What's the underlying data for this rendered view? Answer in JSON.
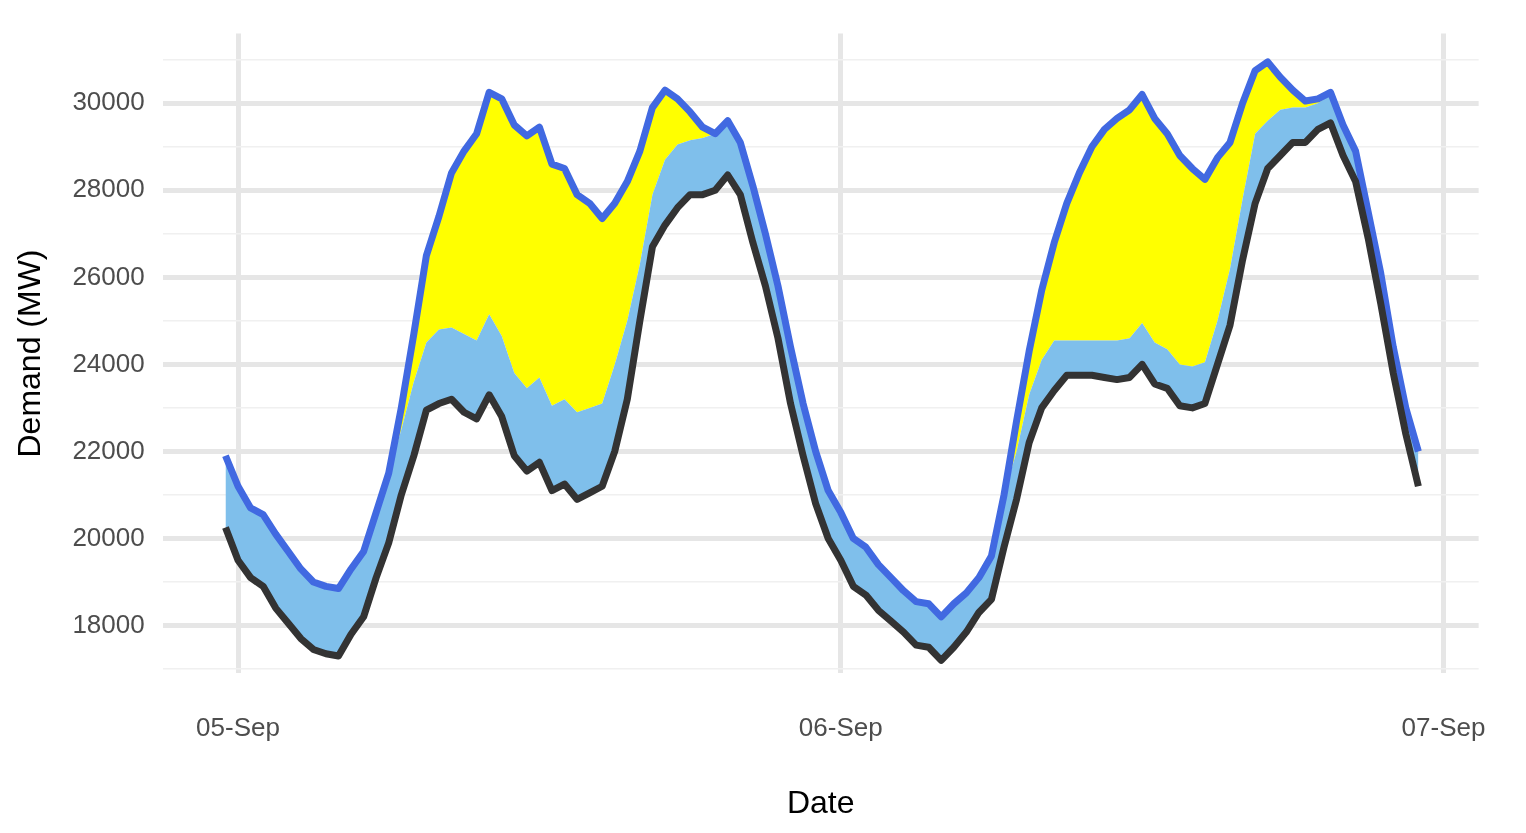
{
  "chart_data": {
    "type": "area",
    "xlabel": "Date",
    "ylabel": "Demand (MW)",
    "grid": true,
    "legend": false,
    "marker": "none",
    "categories": [
      null,
      "05-Sep",
      null,
      null,
      null,
      null,
      null,
      null,
      null,
      null,
      null,
      null,
      null,
      null,
      null,
      null,
      null,
      null,
      null,
      null,
      null,
      null,
      null,
      null,
      null,
      null,
      null,
      null,
      null,
      null,
      null,
      null,
      null,
      null,
      null,
      null,
      null,
      null,
      null,
      null,
      null,
      null,
      null,
      null,
      null,
      null,
      null,
      null,
      null,
      "06-Sep",
      null,
      null,
      null,
      null,
      null,
      null,
      null,
      null,
      null,
      null,
      null,
      null,
      null,
      null,
      null,
      null,
      null,
      null,
      null,
      null,
      null,
      null,
      null,
      null,
      null,
      null,
      null,
      null,
      null,
      null,
      null,
      null,
      null,
      null,
      null,
      null,
      null,
      null,
      null,
      null,
      null,
      null,
      null,
      null,
      null,
      null,
      null,
      "07-Sep"
    ],
    "series": [
      {
        "type": "line",
        "color": "#333333",
        "values": [
          20250,
          19500,
          19100,
          18900,
          18400,
          18050,
          17700,
          17450,
          17350,
          17300,
          17800,
          18200,
          19100,
          19900,
          21000,
          21900,
          22950,
          23100,
          23200,
          22900,
          22750,
          23300,
          22800,
          21900,
          21550,
          21750,
          21100,
          21250,
          20900,
          21050,
          21200,
          22000,
          23200,
          25000,
          26700,
          27200,
          27600,
          27900,
          27900,
          28000,
          28350,
          27900,
          26800,
          25800,
          24600,
          23100,
          21900,
          20800,
          20000,
          19500,
          18900,
          18700,
          18350,
          18100,
          17850,
          17550,
          17500,
          17200,
          17500,
          17850,
          18300,
          18600,
          19800,
          20900,
          22200,
          23000,
          23400,
          23750,
          23750,
          23750,
          23700,
          23650,
          23700,
          24000,
          23550,
          23450,
          23050,
          23000,
          23100,
          24000,
          24900,
          26400,
          27700,
          28500,
          28800,
          29100,
          29100,
          29400,
          29550,
          28800,
          28200,
          26900,
          25400,
          23800,
          22400,
          21200,
          null,
          null
        ]
      },
      {
        "color": "#7fbfeb",
        "values": [
          21900,
          21200,
          20700,
          20550,
          20100,
          19700,
          19300,
          19000,
          18900,
          18850,
          19300,
          19700,
          20600,
          21500,
          22500,
          23600,
          24500,
          24800,
          24850,
          24700,
          24550,
          25150,
          24650,
          23800,
          23450,
          23700,
          23050,
          23200,
          22900,
          23000,
          23100,
          24000,
          25000,
          26300,
          27900,
          28700,
          29050,
          29150,
          29200,
          29300,
          29600,
          29100,
          28100,
          27000,
          25800,
          24400,
          23100,
          22000,
          21100,
          20600,
          20000,
          19800,
          19400,
          19100,
          18800,
          18550,
          18500,
          18200,
          18500,
          18750,
          19100,
          19600,
          21000,
          22000,
          23300,
          24100,
          24550,
          24550,
          24550,
          24550,
          24550,
          24550,
          24600,
          24950,
          24500,
          24350,
          24000,
          23950,
          24050,
          25000,
          26200,
          27800,
          29300,
          29600,
          29850,
          29900,
          29900,
          30000,
          30200,
          29500,
          28900,
          27500,
          26100,
          24400,
          23000,
          22000,
          null,
          null
        ]
      },
      {
        "color": "#ffff00",
        "values": [
          null,
          null,
          null,
          null,
          null,
          null,
          null,
          null,
          null,
          null,
          null,
          null,
          null,
          21500,
          23000,
          24700,
          26500,
          27400,
          28400,
          28900,
          29300,
          30250,
          30100,
          29500,
          29250,
          29450,
          28600,
          28500,
          27900,
          27700,
          27350,
          27700,
          28200,
          28900,
          29900,
          30300,
          30100,
          29800,
          29450,
          29300,
          null,
          null,
          null,
          null,
          null,
          null,
          null,
          null,
          null,
          null,
          null,
          null,
          null,
          null,
          null,
          null,
          null,
          null,
          null,
          null,
          null,
          null,
          21000,
          22700,
          24300,
          25700,
          26800,
          27700,
          28400,
          29000,
          29400,
          29650,
          29850,
          30200,
          29650,
          29300,
          28800,
          28500,
          28250,
          28750,
          29100,
          30000,
          30750,
          30950,
          30600,
          30300,
          30050,
          30100,
          30250,
          29500,
          null,
          null,
          null,
          null,
          null,
          null,
          null,
          null
        ]
      },
      {
        "type": "line",
        "color": "#4169e1",
        "values": [
          21900,
          21200,
          20700,
          20550,
          20100,
          19700,
          19300,
          19000,
          18900,
          18850,
          19300,
          19700,
          20600,
          21500,
          23000,
          24700,
          26500,
          27400,
          28400,
          28900,
          29300,
          30250,
          30100,
          29500,
          29250,
          29450,
          28600,
          28500,
          27900,
          27700,
          27350,
          27700,
          28200,
          28900,
          29900,
          30300,
          30100,
          29800,
          29450,
          29300,
          29600,
          29100,
          28100,
          27000,
          25800,
          24400,
          23100,
          22000,
          21100,
          20600,
          20000,
          19800,
          19400,
          19100,
          18800,
          18550,
          18500,
          18200,
          18500,
          18750,
          19100,
          19600,
          21000,
          22700,
          24300,
          25700,
          26800,
          27700,
          28400,
          29000,
          29400,
          29650,
          29850,
          30200,
          29650,
          29300,
          28800,
          28500,
          28250,
          28750,
          29100,
          30000,
          30750,
          30950,
          30600,
          30300,
          30050,
          30100,
          30250,
          29500,
          28900,
          27500,
          26100,
          24400,
          23000,
          22000,
          null,
          null
        ]
      }
    ],
    "ylim": [
      16900,
      31600
    ],
    "yticks": [
      {
        "value": 17000,
        "label": null
      },
      18000,
      {
        "value": 19000,
        "label": null
      },
      20000,
      {
        "value": 21000,
        "label": null
      },
      22000,
      {
        "value": 23000,
        "label": null
      },
      24000,
      {
        "value": 25000,
        "label": null
      },
      26000,
      {
        "value": 27000,
        "label": null
      },
      28000,
      {
        "value": 29000,
        "label": null
      },
      30000,
      {
        "value": 31000,
        "label": null
      }
    ]
  }
}
